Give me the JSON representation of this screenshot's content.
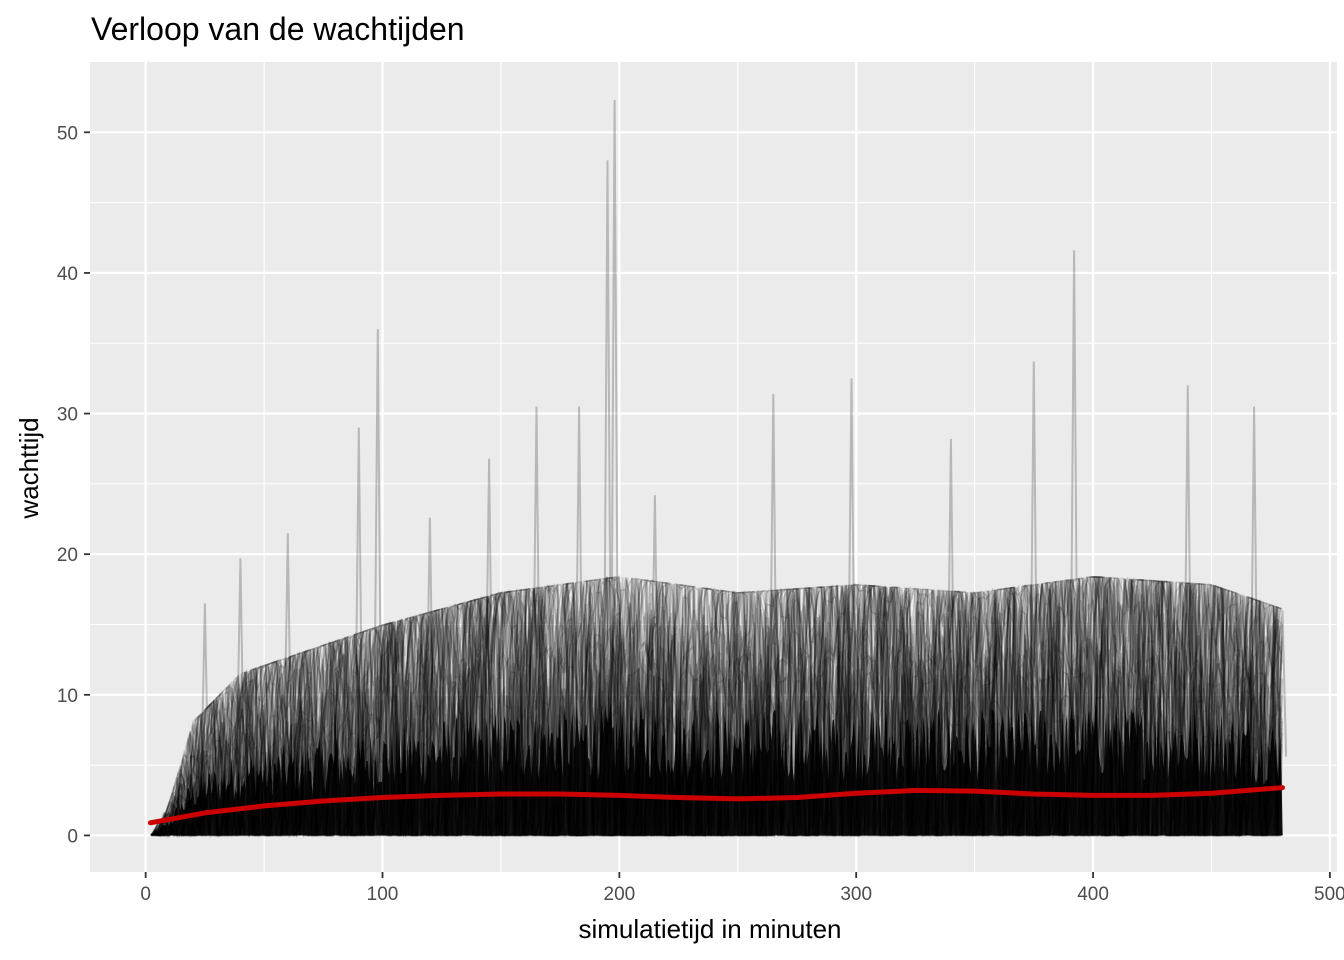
{
  "chart_data": {
    "type": "line",
    "title": "Verloop van de wachtijden",
    "xlabel": "simulatietijd in minuten",
    "ylabel": "wachttijd",
    "xlim": [
      -23.5,
      503
    ],
    "ylim": [
      -2.6,
      55
    ],
    "x_ticks": [
      0,
      100,
      200,
      300,
      400,
      500
    ],
    "x_minor": [
      50,
      150,
      250,
      350,
      450
    ],
    "y_ticks": [
      0,
      10,
      20,
      30,
      40,
      50
    ],
    "y_minor": [
      5,
      15,
      25,
      35,
      45
    ],
    "grid": true,
    "legend": "none",
    "colors": {
      "panel": "#ebebeb",
      "grid": "#ffffff",
      "traces": "#000000",
      "smooth": "#cc0000"
    },
    "series": [
      {
        "style": "many overlapping semi-transparent black traces (simulated waiting time per run)",
        "x": [
          2,
          25,
          40,
          60,
          90,
          98,
          120,
          145,
          165,
          183,
          195,
          198,
          215,
          265,
          298,
          340,
          375,
          392,
          440,
          468,
          480
        ],
        "y": [
          0,
          16.5,
          19.7,
          21.5,
          29,
          36,
          22.6,
          26.8,
          30.5,
          30.5,
          48,
          52.3,
          24.2,
          31.4,
          32.5,
          28.2,
          33.7,
          41.6,
          32,
          30.5,
          16
        ],
        "envelope_x": [
          2,
          10,
          20,
          40,
          60,
          80,
          100,
          150,
          200,
          250,
          300,
          350,
          400,
          450,
          480
        ],
        "envelope_y": [
          0,
          2,
          7,
          10,
          11,
          12,
          13,
          15,
          16,
          15,
          15.5,
          15,
          16,
          15.5,
          14
        ]
      },
      {
        "style": "smoothed mean (red)",
        "x": [
          2,
          25,
          50,
          75,
          100,
          125,
          150,
          175,
          200,
          225,
          250,
          275,
          300,
          325,
          350,
          375,
          400,
          425,
          450,
          480
        ],
        "y": [
          0.9,
          1.6,
          2.1,
          2.45,
          2.7,
          2.85,
          2.95,
          2.95,
          2.85,
          2.7,
          2.6,
          2.7,
          3.0,
          3.2,
          3.15,
          2.95,
          2.85,
          2.85,
          3.0,
          3.4
        ]
      }
    ]
  }
}
